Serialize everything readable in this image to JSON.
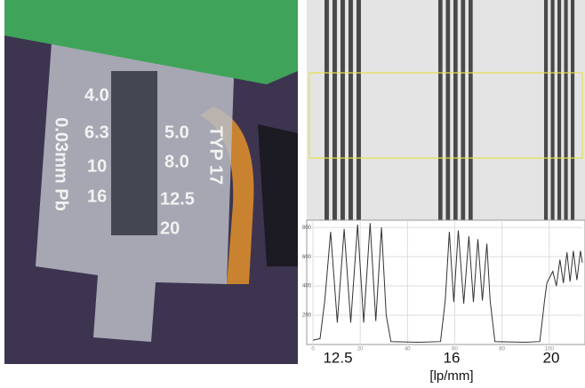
{
  "photo": {
    "labels_left": [
      "4.0",
      "6.3",
      "10",
      "16"
    ],
    "labels_right": [
      "5.0",
      "8.0",
      "12.5",
      "20"
    ],
    "side_left": "0.03mm Pb",
    "side_right": "TYP 17"
  },
  "chart_data": {
    "type": "line",
    "x": [
      0,
      3,
      5,
      7.5,
      10.3,
      13.2,
      16,
      18.9,
      21.5,
      24.2,
      26.6,
      29,
      31,
      33,
      45,
      54,
      56,
      57.7,
      59.6,
      61.5,
      63.8,
      66,
      67.9,
      69.8,
      71.7,
      73.6,
      75,
      77,
      90,
      96,
      98,
      99,
      101.5,
      103,
      104.5,
      106,
      107.5,
      108.8,
      110.2,
      111.7,
      113.2,
      114
    ],
    "series": [
      {
        "color": "#333333",
        "values": [
          30,
          40,
          300,
          770,
          150,
          790,
          150,
          820,
          150,
          830,
          160,
          800,
          200,
          20,
          15,
          20,
          300,
          770,
          290,
          780,
          280,
          740,
          290,
          720,
          300,
          690,
          300,
          20,
          15,
          20,
          300,
          420,
          500,
          400,
          580,
          420,
          630,
          430,
          640,
          440,
          640,
          560
        ]
      }
    ],
    "xlim": [
      0,
      114
    ],
    "xticks": [
      0,
      20,
      40,
      60,
      80,
      100
    ],
    "ylim": [
      0,
      850
    ],
    "yticks": [
      200,
      400,
      600,
      800
    ],
    "grid": true,
    "group_labels": [
      "12.5",
      "16",
      "20"
    ],
    "xlabel": "[lp/mm]"
  }
}
